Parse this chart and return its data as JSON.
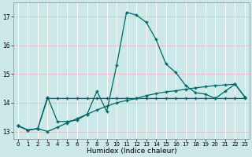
{
  "xlabel": "Humidex (Indice chaleur)",
  "bg_color": "#cce8e8",
  "grid_major_color": "#ffffff",
  "grid_minor_color": "#e8b8b8",
  "line_color": "#006666",
  "xlim": [
    -0.5,
    23.5
  ],
  "ylim": [
    12.75,
    17.5
  ],
  "yticks": [
    13,
    14,
    15,
    16,
    17
  ],
  "xticks": [
    0,
    1,
    2,
    3,
    4,
    5,
    6,
    7,
    8,
    9,
    10,
    11,
    12,
    13,
    14,
    15,
    16,
    17,
    18,
    19,
    20,
    21,
    22,
    23
  ],
  "series1": [
    13.2,
    13.05,
    13.1,
    14.2,
    13.35,
    13.35,
    13.4,
    13.6,
    14.4,
    13.7,
    15.3,
    17.15,
    17.05,
    16.8,
    16.2,
    15.35,
    15.05,
    14.6,
    14.35,
    14.3,
    14.15,
    14.4,
    14.65,
    14.2
  ],
  "series2": [
    13.2,
    13.05,
    13.1,
    14.15,
    14.15,
    14.15,
    14.15,
    14.15,
    14.15,
    14.15,
    14.15,
    14.15,
    14.15,
    14.15,
    14.15,
    14.15,
    14.15,
    14.15,
    14.15,
    14.15,
    14.15,
    14.15,
    14.15,
    14.15
  ],
  "series3": [
    13.2,
    13.05,
    13.1,
    13.0,
    13.15,
    13.3,
    13.45,
    13.6,
    13.75,
    13.88,
    14.0,
    14.08,
    14.15,
    14.25,
    14.32,
    14.38,
    14.42,
    14.47,
    14.52,
    14.56,
    14.6,
    14.62,
    14.65,
    14.2
  ],
  "marker": "+",
  "markersize": 3,
  "linewidth": 0.9
}
